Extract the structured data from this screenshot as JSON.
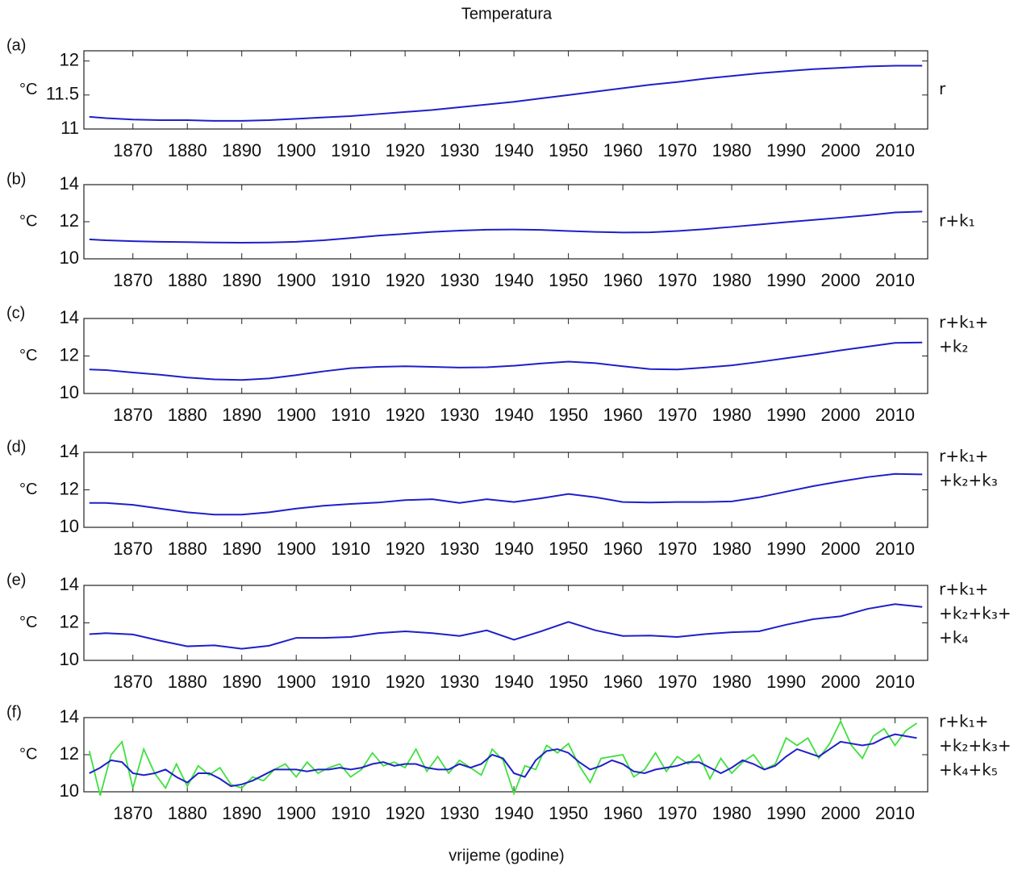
{
  "title": "Temperatura",
  "x_label": "vrijeme (godine)",
  "chart_data": [
    {
      "type": "line",
      "panel_label": "(a)",
      "ylabel": "°C",
      "annotation": [
        "r"
      ],
      "x": [
        1862,
        1865,
        1870,
        1875,
        1880,
        1885,
        1890,
        1895,
        1900,
        1905,
        1910,
        1915,
        1920,
        1925,
        1930,
        1935,
        1940,
        1945,
        1950,
        1955,
        1960,
        1965,
        1970,
        1975,
        1980,
        1985,
        1990,
        1995,
        2000,
        2005,
        2010,
        2015
      ],
      "series": [
        {
          "color": "#1f1fc8",
          "values": [
            11.18,
            11.16,
            11.14,
            11.13,
            11.13,
            11.12,
            11.12,
            11.13,
            11.15,
            11.17,
            11.19,
            11.22,
            11.25,
            11.28,
            11.32,
            11.36,
            11.4,
            11.45,
            11.5,
            11.55,
            11.6,
            11.65,
            11.69,
            11.74,
            11.78,
            11.82,
            11.85,
            11.88,
            11.9,
            11.92,
            11.93,
            11.93
          ]
        }
      ],
      "xlim": [
        1861,
        2016
      ],
      "ylim": [
        11,
        12.15
      ],
      "xticks": [
        1870,
        1880,
        1890,
        1900,
        1910,
        1920,
        1930,
        1940,
        1950,
        1960,
        1970,
        1980,
        1990,
        2000,
        2010
      ],
      "yticks": [
        11,
        11.5,
        12
      ]
    },
    {
      "type": "line",
      "panel_label": "(b)",
      "ylabel": "°C",
      "annotation": [
        "r+k₁"
      ],
      "x": [
        1862,
        1865,
        1870,
        1875,
        1880,
        1885,
        1890,
        1895,
        1900,
        1905,
        1910,
        1915,
        1920,
        1925,
        1930,
        1935,
        1940,
        1945,
        1950,
        1955,
        1960,
        1965,
        1970,
        1975,
        1980,
        1985,
        1990,
        1995,
        2000,
        2005,
        2010,
        2015
      ],
      "series": [
        {
          "color": "#1f1fc8",
          "values": [
            11.05,
            11.0,
            10.95,
            10.92,
            10.9,
            10.88,
            10.87,
            10.88,
            10.92,
            11.0,
            11.12,
            11.25,
            11.35,
            11.45,
            11.52,
            11.57,
            11.58,
            11.56,
            11.5,
            11.45,
            11.42,
            11.43,
            11.5,
            11.6,
            11.72,
            11.85,
            11.98,
            12.1,
            12.22,
            12.35,
            12.5,
            12.55
          ]
        }
      ],
      "xlim": [
        1861,
        2016
      ],
      "ylim": [
        10,
        14
      ],
      "xticks": [
        1870,
        1880,
        1890,
        1900,
        1910,
        1920,
        1930,
        1940,
        1950,
        1960,
        1970,
        1980,
        1990,
        2000,
        2010
      ],
      "yticks": [
        10,
        12,
        14
      ]
    },
    {
      "type": "line",
      "panel_label": "(c)",
      "ylabel": "°C",
      "annotation": [
        "r+k₁+",
        "+k₂"
      ],
      "x": [
        1862,
        1865,
        1870,
        1875,
        1880,
        1885,
        1890,
        1895,
        1900,
        1905,
        1910,
        1915,
        1920,
        1925,
        1930,
        1935,
        1940,
        1945,
        1950,
        1955,
        1960,
        1965,
        1970,
        1975,
        1980,
        1985,
        1990,
        1995,
        2000,
        2005,
        2010,
        2015
      ],
      "series": [
        {
          "color": "#1f1fc8",
          "values": [
            11.28,
            11.25,
            11.12,
            11.0,
            10.85,
            10.75,
            10.72,
            10.8,
            10.98,
            11.18,
            11.35,
            11.42,
            11.45,
            11.42,
            11.38,
            11.4,
            11.48,
            11.6,
            11.7,
            11.62,
            11.45,
            11.3,
            11.28,
            11.38,
            11.5,
            11.68,
            11.88,
            12.08,
            12.3,
            12.5,
            12.7,
            12.72
          ]
        }
      ],
      "xlim": [
        1861,
        2016
      ],
      "ylim": [
        10,
        14
      ],
      "xticks": [
        1870,
        1880,
        1890,
        1900,
        1910,
        1920,
        1930,
        1940,
        1950,
        1960,
        1970,
        1980,
        1990,
        2000,
        2010
      ],
      "yticks": [
        10,
        12,
        14
      ]
    },
    {
      "type": "line",
      "panel_label": "(d)",
      "ylabel": "°C",
      "annotation": [
        "r+k₁+",
        "+k₂+k₃"
      ],
      "x": [
        1862,
        1865,
        1870,
        1875,
        1880,
        1885,
        1890,
        1895,
        1900,
        1905,
        1910,
        1915,
        1920,
        1925,
        1930,
        1935,
        1940,
        1945,
        1950,
        1955,
        1960,
        1965,
        1970,
        1975,
        1980,
        1985,
        1990,
        1995,
        2000,
        2005,
        2010,
        2015
      ],
      "series": [
        {
          "color": "#1f1fc8",
          "values": [
            11.3,
            11.3,
            11.2,
            11.0,
            10.8,
            10.68,
            10.68,
            10.8,
            11.0,
            11.15,
            11.25,
            11.32,
            11.45,
            11.5,
            11.3,
            11.5,
            11.35,
            11.55,
            11.78,
            11.6,
            11.35,
            11.32,
            11.35,
            11.35,
            11.38,
            11.6,
            11.9,
            12.2,
            12.45,
            12.68,
            12.85,
            12.82
          ]
        }
      ],
      "xlim": [
        1861,
        2016
      ],
      "ylim": [
        10,
        14
      ],
      "xticks": [
        1870,
        1880,
        1890,
        1900,
        1910,
        1920,
        1930,
        1940,
        1950,
        1960,
        1970,
        1980,
        1990,
        2000,
        2010
      ],
      "yticks": [
        10,
        12,
        14
      ]
    },
    {
      "type": "line",
      "panel_label": "(e)",
      "ylabel": "°C",
      "annotation": [
        "r+k₁+",
        "+k₂+k₃+",
        "+k₄"
      ],
      "x": [
        1862,
        1865,
        1870,
        1875,
        1880,
        1885,
        1890,
        1895,
        1900,
        1905,
        1910,
        1915,
        1920,
        1925,
        1930,
        1935,
        1940,
        1945,
        1950,
        1955,
        1960,
        1965,
        1970,
        1975,
        1980,
        1985,
        1990,
        1995,
        2000,
        2005,
        2010,
        2015
      ],
      "series": [
        {
          "color": "#1f1fc8",
          "values": [
            11.4,
            11.45,
            11.38,
            11.05,
            10.75,
            10.8,
            10.62,
            10.78,
            11.2,
            11.2,
            11.25,
            11.45,
            11.55,
            11.45,
            11.3,
            11.6,
            11.1,
            11.55,
            12.05,
            11.6,
            11.3,
            11.32,
            11.25,
            11.4,
            11.5,
            11.55,
            11.9,
            12.2,
            12.35,
            12.75,
            13.0,
            12.85
          ]
        }
      ],
      "xlim": [
        1861,
        2016
      ],
      "ylim": [
        10,
        14
      ],
      "xticks": [
        1870,
        1880,
        1890,
        1900,
        1910,
        1920,
        1930,
        1940,
        1950,
        1960,
        1970,
        1980,
        1990,
        2000,
        2010
      ],
      "yticks": [
        10,
        12,
        14
      ]
    },
    {
      "type": "line",
      "panel_label": "(f)",
      "ylabel": "°C",
      "annotation": [
        "r+k₁+",
        "+k₂+k₃+",
        "+k₄+k₅"
      ],
      "x": [
        1862,
        1864,
        1866,
        1868,
        1870,
        1872,
        1874,
        1876,
        1878,
        1880,
        1882,
        1884,
        1886,
        1888,
        1890,
        1892,
        1894,
        1896,
        1898,
        1900,
        1902,
        1904,
        1906,
        1908,
        1910,
        1912,
        1914,
        1916,
        1918,
        1920,
        1922,
        1924,
        1926,
        1928,
        1930,
        1932,
        1934,
        1936,
        1938,
        1940,
        1942,
        1944,
        1946,
        1948,
        1950,
        1952,
        1954,
        1956,
        1958,
        1960,
        1962,
        1964,
        1966,
        1968,
        1970,
        1972,
        1974,
        1976,
        1978,
        1980,
        1982,
        1984,
        1986,
        1988,
        1990,
        1992,
        1994,
        1996,
        1998,
        2000,
        2002,
        2004,
        2006,
        2008,
        2010,
        2012,
        2014
      ],
      "series": [
        {
          "color": "#3ee03e",
          "values": [
            12.2,
            9.8,
            12.0,
            12.7,
            10.2,
            12.3,
            11.0,
            10.2,
            11.5,
            10.3,
            11.4,
            10.9,
            11.3,
            10.4,
            10.2,
            10.8,
            10.6,
            11.2,
            11.5,
            10.8,
            11.6,
            11.0,
            11.3,
            11.5,
            10.8,
            11.2,
            12.1,
            11.4,
            11.6,
            11.3,
            12.3,
            11.1,
            11.9,
            11.0,
            11.7,
            11.3,
            10.9,
            12.3,
            11.7,
            9.9,
            11.4,
            11.2,
            12.5,
            12.1,
            12.6,
            11.4,
            10.5,
            11.8,
            11.9,
            12.0,
            10.8,
            11.2,
            12.1,
            11.1,
            11.9,
            11.5,
            12.0,
            10.7,
            11.8,
            11.0,
            11.6,
            12.0,
            11.2,
            11.5,
            12.9,
            12.5,
            12.9,
            11.8,
            12.6,
            13.8,
            12.5,
            11.8,
            13.0,
            13.4,
            12.5,
            13.3,
            13.7
          ]
        },
        {
          "color": "#1f1fc8",
          "values": [
            11.0,
            11.3,
            11.7,
            11.6,
            11.0,
            10.9,
            11.0,
            11.2,
            10.8,
            10.5,
            11.0,
            11.0,
            10.7,
            10.3,
            10.4,
            10.6,
            10.9,
            11.2,
            11.2,
            11.2,
            11.1,
            11.2,
            11.2,
            11.3,
            11.2,
            11.3,
            11.5,
            11.6,
            11.4,
            11.5,
            11.5,
            11.3,
            11.2,
            11.2,
            11.5,
            11.3,
            11.5,
            12.0,
            11.8,
            11.0,
            10.8,
            11.7,
            12.2,
            12.3,
            12.1,
            11.6,
            11.2,
            11.4,
            11.7,
            11.5,
            11.1,
            11.0,
            11.2,
            11.3,
            11.4,
            11.6,
            11.6,
            11.3,
            11.0,
            11.3,
            11.7,
            11.5,
            11.2,
            11.4,
            11.9,
            12.3,
            12.1,
            11.9,
            12.3,
            12.7,
            12.6,
            12.5,
            12.6,
            12.9,
            13.1,
            13.0,
            12.9
          ]
        }
      ],
      "xlim": [
        1861,
        2016
      ],
      "ylim": [
        10,
        14
      ],
      "xticks": [
        1870,
        1880,
        1890,
        1900,
        1910,
        1920,
        1930,
        1940,
        1950,
        1960,
        1970,
        1980,
        1990,
        2000,
        2010
      ],
      "yticks": [
        10,
        12,
        14
      ]
    }
  ]
}
